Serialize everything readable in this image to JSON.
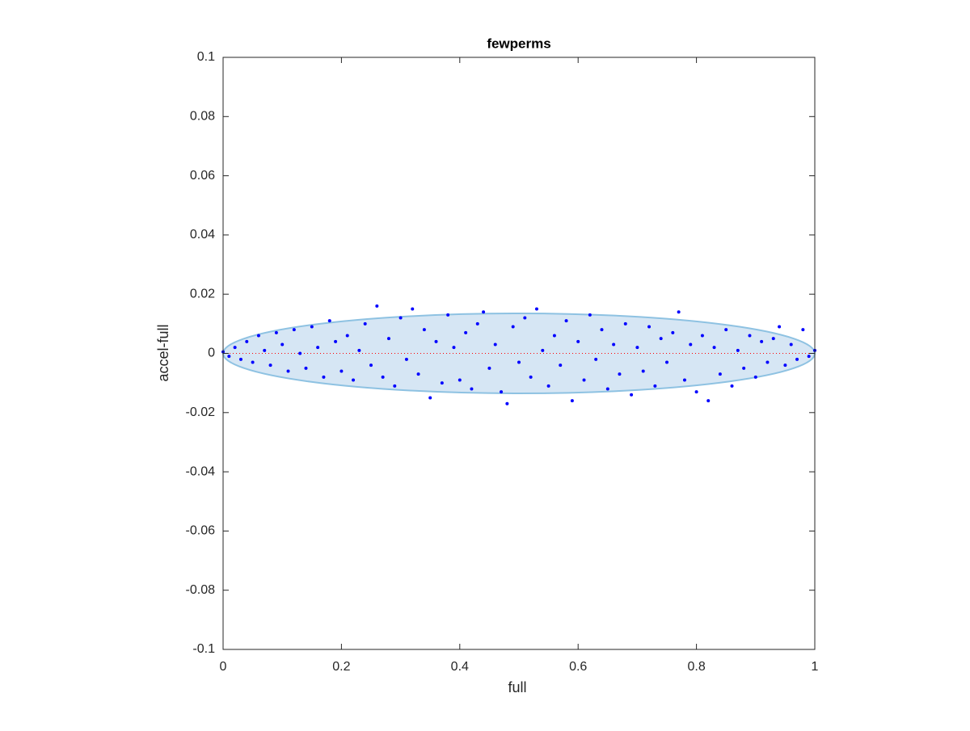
{
  "chart_data": {
    "type": "scatter",
    "title": "fewperms",
    "x_label": "full",
    "y_label": "accel-full",
    "xlim": [
      0,
      1
    ],
    "ylim": [
      -0.1,
      0.1
    ],
    "xticks": [
      0,
      0.2,
      0.4,
      0.6,
      0.8,
      1
    ],
    "yticks": [
      -0.1,
      -0.08,
      -0.06,
      -0.04,
      -0.02,
      0,
      0.02,
      0.04,
      0.06,
      0.08,
      0.1
    ],
    "ellipse": {
      "xlim": [
        0,
        1
      ],
      "ylim": [
        -0.0135,
        0.0135
      ],
      "fill": "#d6e6f4",
      "stroke": "#8ec2e2"
    },
    "zero_line": {
      "y": 0,
      "color": "#ff0000"
    },
    "color": "#0000ff",
    "x": [
      0,
      0.01,
      0.02,
      0.03,
      0.04,
      0.05,
      0.06,
      0.07,
      0.08,
      0.09,
      0.1,
      0.11,
      0.12,
      0.13,
      0.14,
      0.15,
      0.16,
      0.17,
      0.18,
      0.19,
      0.2,
      0.21,
      0.22,
      0.23,
      0.24,
      0.25,
      0.26,
      0.27,
      0.28,
      0.29,
      0.3,
      0.31,
      0.32,
      0.33,
      0.34,
      0.35,
      0.36,
      0.37,
      0.38,
      0.39,
      0.4,
      0.41,
      0.42,
      0.43,
      0.44,
      0.45,
      0.46,
      0.47,
      0.48,
      0.49,
      0.5,
      0.51,
      0.52,
      0.53,
      0.54,
      0.55,
      0.56,
      0.57,
      0.58,
      0.59,
      0.6,
      0.61,
      0.62,
      0.63,
      0.64,
      0.65,
      0.66,
      0.67,
      0.68,
      0.69,
      0.7,
      0.71,
      0.72,
      0.73,
      0.74,
      0.75,
      0.76,
      0.77,
      0.78,
      0.79,
      0.8,
      0.81,
      0.82,
      0.83,
      0.84,
      0.85,
      0.86,
      0.87,
      0.88,
      0.89,
      0.9,
      0.91,
      0.92,
      0.93,
      0.94,
      0.95,
      0.96,
      0.97,
      0.98,
      0.99,
      1
    ],
    "values": [
      0.0005,
      -0.001,
      0.002,
      -0.002,
      0.004,
      -0.003,
      0.006,
      0.001,
      -0.004,
      0.007,
      0.003,
      -0.006,
      0.008,
      0,
      -0.005,
      0.009,
      0.002,
      -0.008,
      0.011,
      0.004,
      -0.006,
      0.006,
      -0.009,
      0.001,
      0.01,
      -0.004,
      0.016,
      -0.008,
      0.005,
      -0.011,
      0.012,
      -0.002,
      0.015,
      -0.007,
      0.008,
      -0.015,
      0.004,
      -0.01,
      0.013,
      0.002,
      -0.009,
      0.007,
      -0.012,
      0.01,
      0.014,
      -0.005,
      0.003,
      -0.013,
      -0.017,
      0.009,
      -0.003,
      0.012,
      -0.008,
      0.015,
      0.001,
      -0.011,
      0.006,
      -0.004,
      0.011,
      -0.016,
      0.004,
      -0.009,
      0.013,
      -0.002,
      0.008,
      -0.012,
      0.003,
      -0.007,
      0.01,
      -0.014,
      0.002,
      -0.006,
      0.009,
      -0.011,
      0.005,
      -0.003,
      0.007,
      0.014,
      -0.009,
      0.003,
      -0.013,
      0.006,
      -0.016,
      0.002,
      -0.007,
      0.008,
      -0.011,
      0.001,
      -0.005,
      0.006,
      -0.008,
      0.004,
      -0.003,
      0.005,
      0.009,
      -0.004,
      0.003,
      -0.002,
      0.008,
      -0.001,
      0.001
    ]
  }
}
